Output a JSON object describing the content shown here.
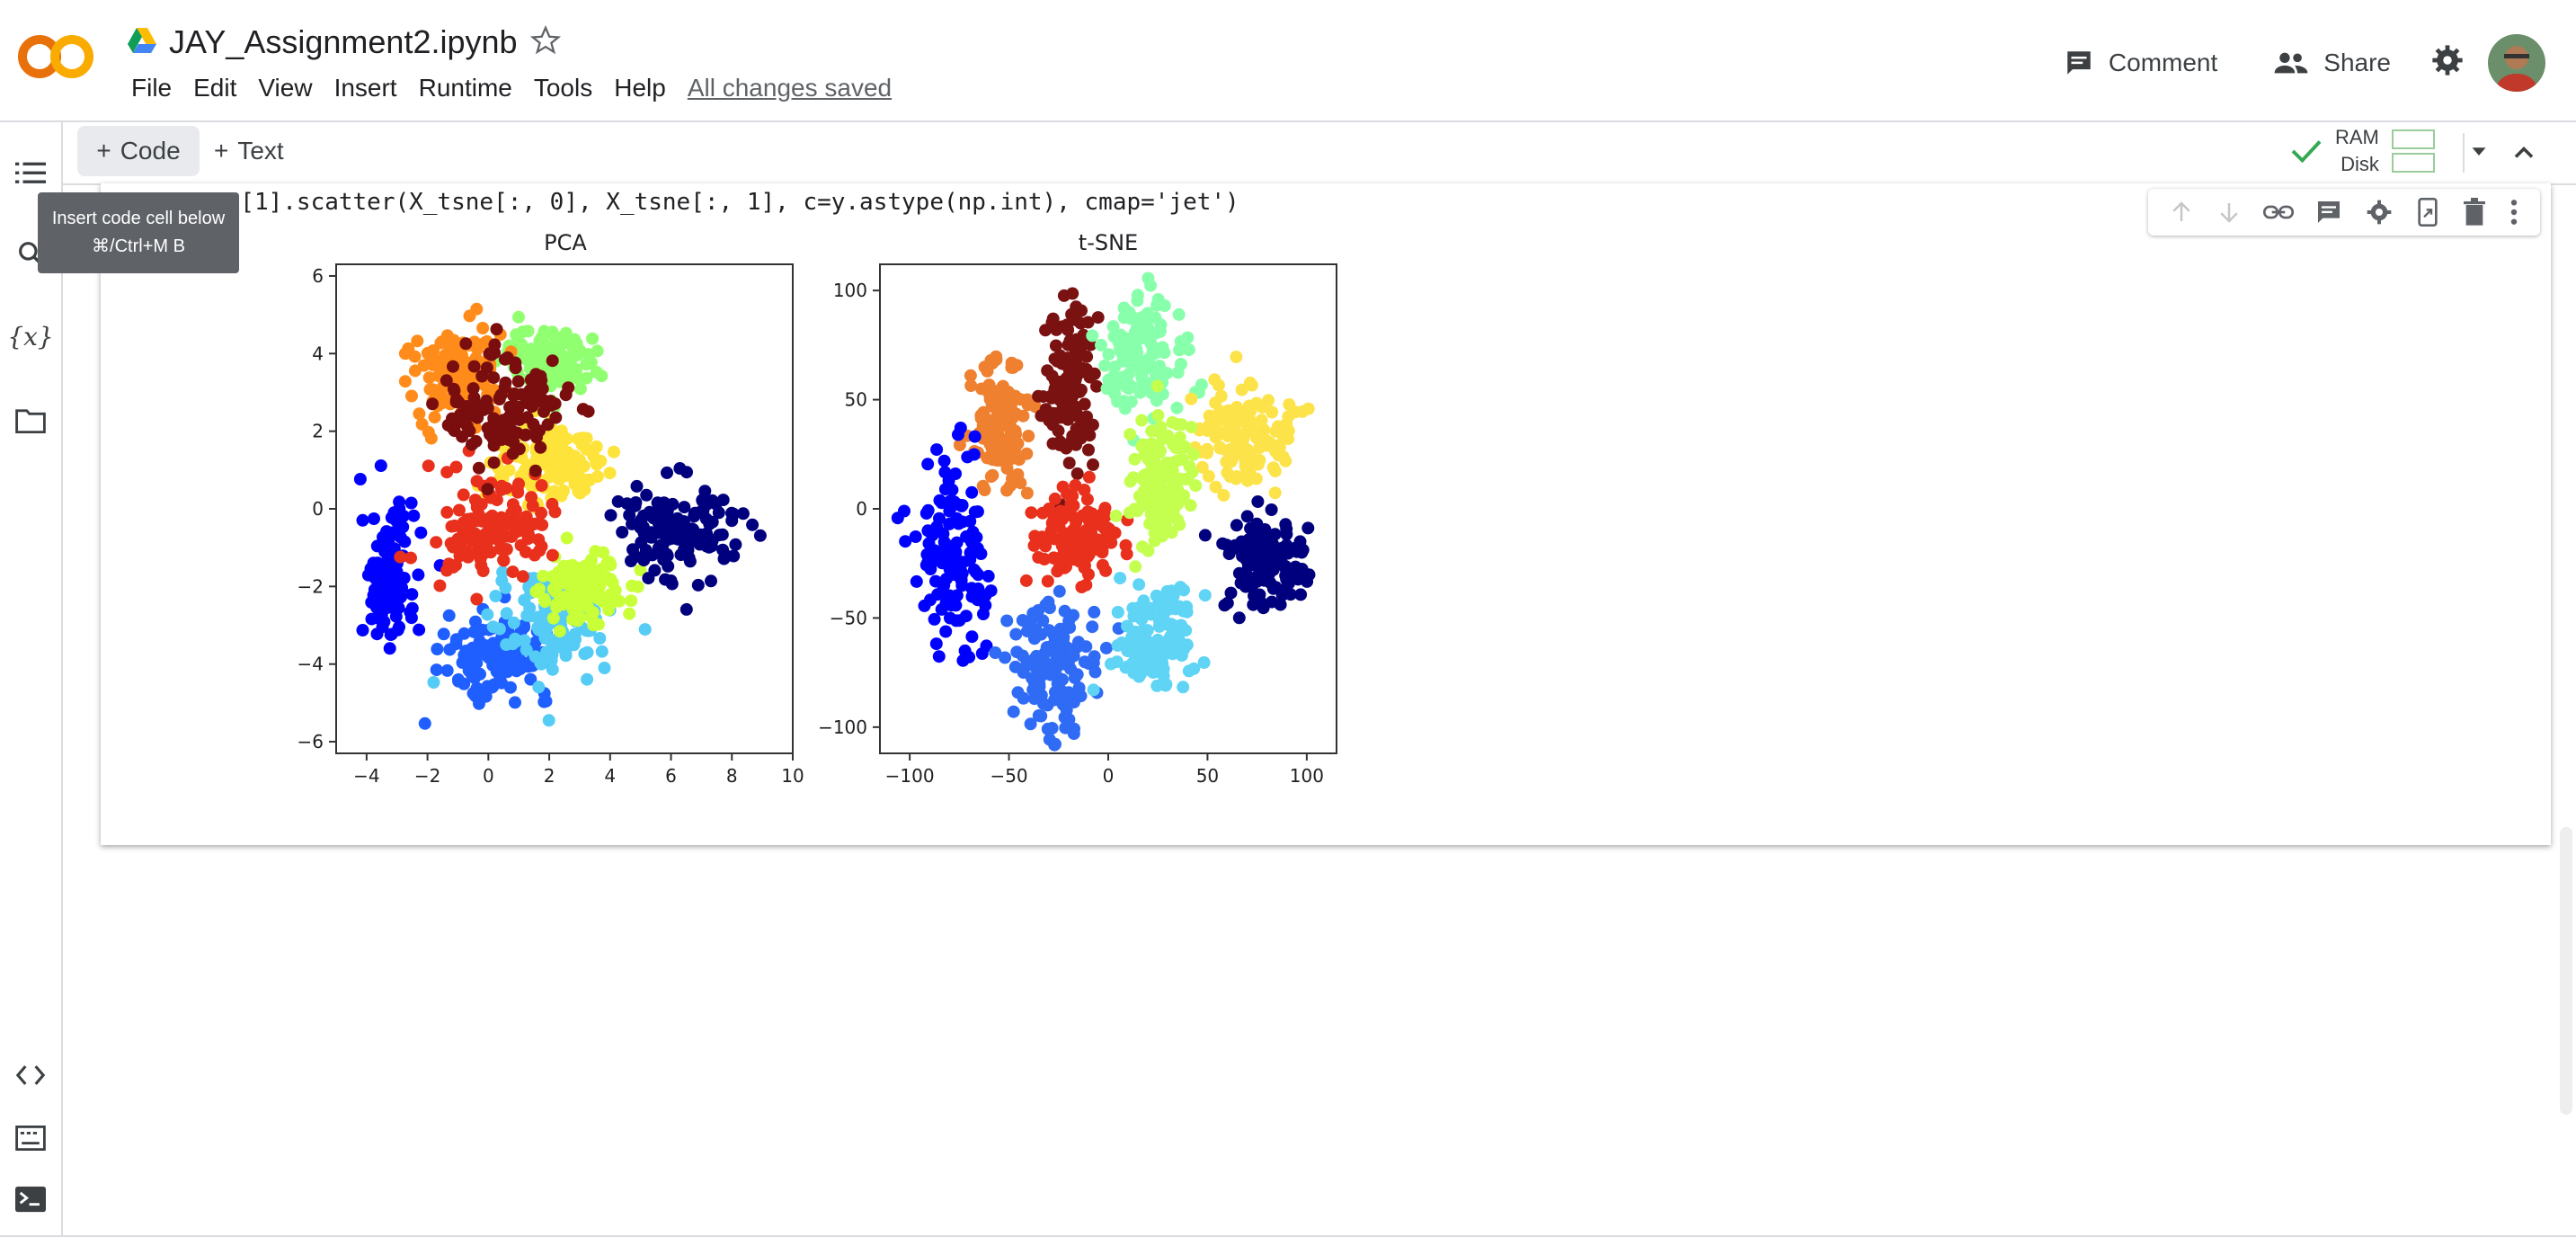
{
  "app": {
    "notebook_title": "JAY_Assignment2.ipynb",
    "menu": [
      "File",
      "Edit",
      "View",
      "Insert",
      "Runtime",
      "Tools",
      "Help"
    ],
    "save_status": "All changes saved",
    "comment_label": "Comment",
    "share_label": "Share",
    "logo_text": "CO"
  },
  "toolbar": {
    "code_label": "Code",
    "text_label": "Text",
    "ram_label": "RAM",
    "disk_label": "Disk"
  },
  "tooltip": {
    "line1": "Insert code cell below",
    "line2": "⌘/Ctrl+M B"
  },
  "cell": {
    "code": "ax[1].scatter(X_tsne[:, 0], X_tsne[:, 1], c=y.astype(np.int), cmap='jet')"
  },
  "icons": {
    "sidebar": [
      "toc-icon",
      "search-icon",
      "variables-icon",
      "folder-icon",
      "code-snippets-icon",
      "command-palette-icon",
      "terminal-icon"
    ],
    "cell_toolbar": [
      "move-up-icon",
      "move-down-icon",
      "link-icon",
      "comment-icon",
      "settings-icon",
      "mirror-cell-icon",
      "delete-icon",
      "more-icon"
    ]
  },
  "chart_data": [
    {
      "type": "scatter",
      "title": "PCA",
      "xlabel": "",
      "ylabel": "",
      "xlim": [
        -5,
        10
      ],
      "ylim": [
        -6.3,
        6.3
      ],
      "xticks": [
        "−4",
        "−2",
        "0",
        "2",
        "4",
        "6",
        "8",
        "10"
      ],
      "yticks": [
        "6",
        "4",
        "2",
        "0",
        "−2",
        "−4",
        "−6"
      ],
      "colormap": "jet",
      "clusters": [
        {
          "color": "#0000ff",
          "center": [
            -3.3,
            -1.8
          ],
          "spread": [
            0.8,
            1.6
          ]
        },
        {
          "color": "#1f5fff",
          "center": [
            0.3,
            -3.8
          ],
          "spread": [
            1.6,
            0.9
          ]
        },
        {
          "color": "#55ccf5",
          "center": [
            2.2,
            -3.0
          ],
          "spread": [
            1.7,
            1.1
          ]
        },
        {
          "color": "#90ff70",
          "center": [
            2.0,
            3.8
          ],
          "spread": [
            1.4,
            0.9
          ]
        },
        {
          "color": "#c8ff38",
          "center": [
            3.2,
            -2.0
          ],
          "spread": [
            1.2,
            0.8
          ]
        },
        {
          "color": "#fde33a",
          "center": [
            1.8,
            1.2
          ],
          "spread": [
            1.6,
            1.0
          ]
        },
        {
          "color": "#ff8c1a",
          "center": [
            -1.0,
            3.4
          ],
          "spread": [
            1.4,
            1.1
          ]
        },
        {
          "color": "#e8301c",
          "center": [
            0.0,
            -0.5
          ],
          "spread": [
            1.8,
            1.2
          ]
        },
        {
          "color": "#7a0e0e",
          "center": [
            0.6,
            2.6
          ],
          "spread": [
            1.8,
            1.3
          ]
        },
        {
          "color": "#00007f",
          "center": [
            6.2,
            -0.5
          ],
          "spread": [
            1.7,
            1.2
          ]
        }
      ]
    },
    {
      "type": "scatter",
      "title": "t-SNE",
      "xlabel": "",
      "ylabel": "",
      "xlim": [
        -115,
        115
      ],
      "ylim": [
        -112,
        112
      ],
      "xticks": [
        "−100",
        "−50",
        "0",
        "50",
        "100"
      ],
      "yticks": [
        "100",
        "50",
        "0",
        "−50",
        "−100"
      ],
      "colormap": "jet",
      "clusters": [
        {
          "color": "#ee8030",
          "center": [
            -55,
            38
          ],
          "spread": [
            14,
            26
          ]
        },
        {
          "color": "#7a1212",
          "center": [
            -18,
            58
          ],
          "spread": [
            13,
            34
          ]
        },
        {
          "color": "#88ffaa",
          "center": [
            18,
            70
          ],
          "spread": [
            18,
            24
          ]
        },
        {
          "color": "#fde34a",
          "center": [
            70,
            33
          ],
          "spread": [
            22,
            20
          ]
        },
        {
          "color": "#0000ff",
          "center": [
            -78,
            -22
          ],
          "spread": [
            16,
            40
          ]
        },
        {
          "color": "#e8301c",
          "center": [
            -16,
            -14
          ],
          "spread": [
            20,
            18
          ]
        },
        {
          "color": "#c4ff50",
          "center": [
            25,
            14
          ],
          "spread": [
            14,
            28
          ]
        },
        {
          "color": "#00007f",
          "center": [
            78,
            -25
          ],
          "spread": [
            18,
            20
          ]
        },
        {
          "color": "#2f6bf5",
          "center": [
            -28,
            -75
          ],
          "spread": [
            20,
            30
          ]
        },
        {
          "color": "#5fd4f5",
          "center": [
            22,
            -58
          ],
          "spread": [
            18,
            24
          ]
        }
      ]
    }
  ]
}
